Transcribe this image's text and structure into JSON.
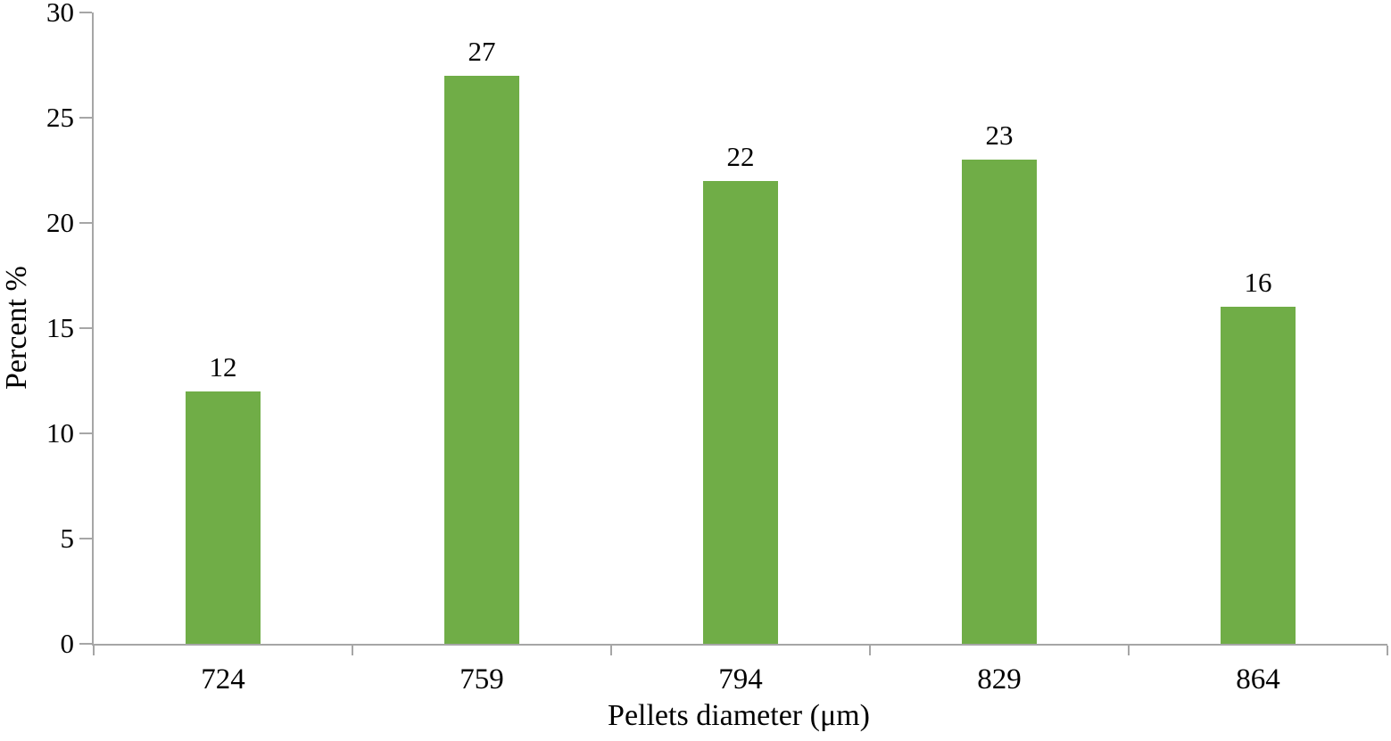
{
  "chart_data": {
    "type": "bar",
    "title": "",
    "categories": [
      "724",
      "759",
      "794",
      "829",
      "864"
    ],
    "values": [
      12,
      27,
      22,
      23,
      16
    ],
    "series_name": "",
    "xlabel": "Pellets diameter (μm)",
    "ylabel": "Percent %",
    "ylim": [
      0,
      30
    ],
    "yticks": [
      0,
      5,
      10,
      15,
      20,
      25,
      30
    ],
    "data_labels": [
      12,
      27,
      22,
      23,
      16
    ],
    "grid": false,
    "legend": "none",
    "bar_color": "#70ad47",
    "axis_color": "#a6a6a6",
    "text_color": "#000000",
    "background_color": "#ffffff"
  }
}
